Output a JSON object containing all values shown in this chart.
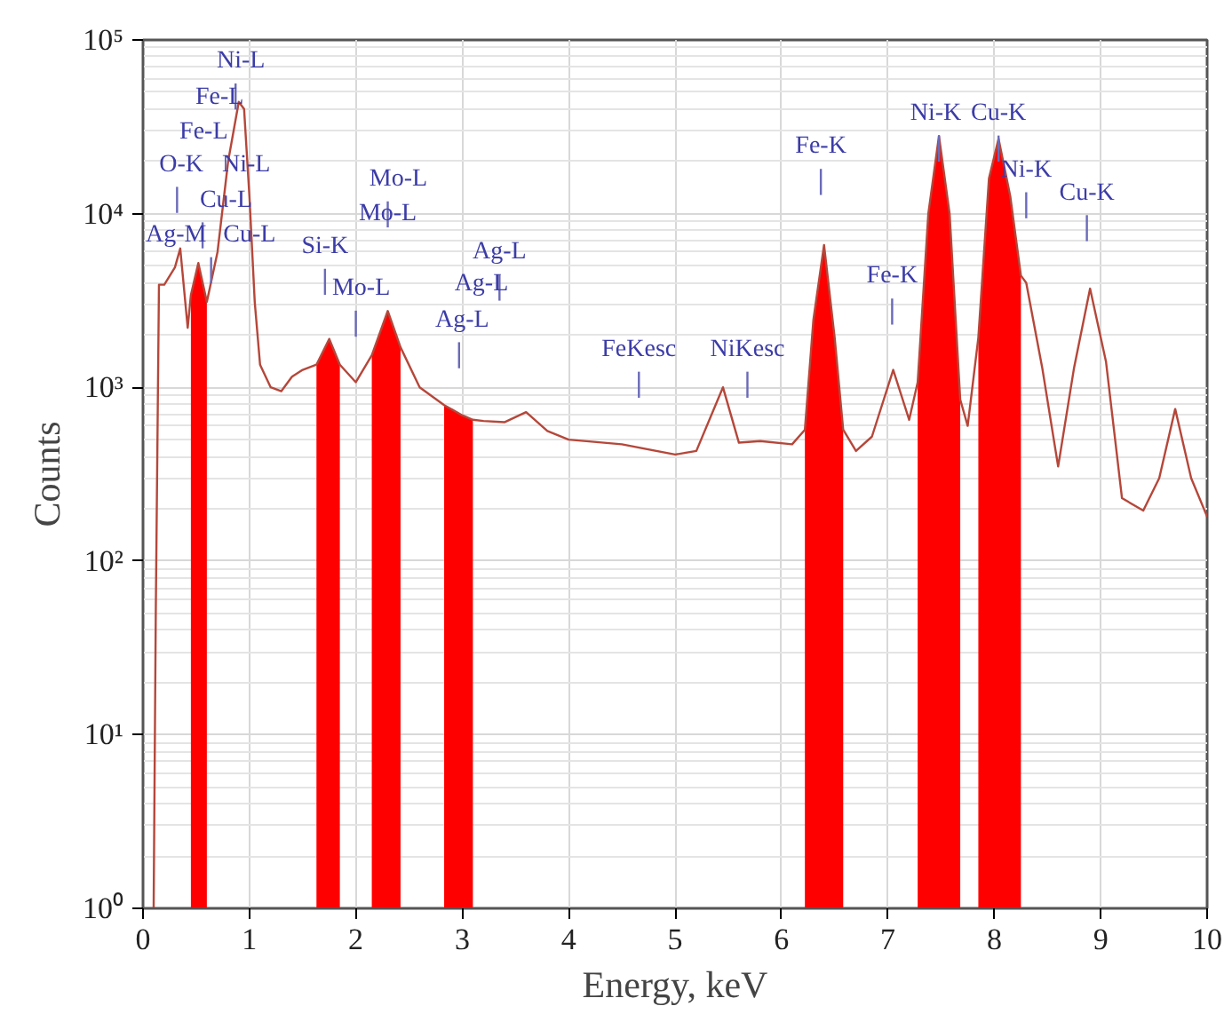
{
  "chart_data": {
    "type": "line",
    "xlabel": "Energy, keV",
    "ylabel": "Counts",
    "log": "y",
    "grid": true,
    "xlim": [
      0,
      10
    ],
    "xticks": [
      0,
      1,
      2,
      3,
      4,
      5,
      6,
      7,
      8,
      9,
      10
    ],
    "ylim": [
      1,
      100000
    ],
    "yticks": [
      {
        "value": 1,
        "label": "10⁰"
      },
      {
        "value": 10,
        "label": "10¹"
      },
      {
        "value": 100,
        "label": "10²"
      },
      {
        "value": 1000,
        "label": "10³"
      },
      {
        "value": 10000,
        "label": "10⁴"
      },
      {
        "value": 100000,
        "label": "10⁵"
      }
    ],
    "series": [
      {
        "type": "area",
        "color": "#ff0000",
        "x": [
          0.45,
          0.52,
          0.6
        ],
        "values": [
          3400,
          5200,
          3100
        ]
      },
      {
        "type": "area",
        "color": "#ff0000",
        "x": [
          1.63,
          1.75,
          1.85
        ],
        "values": [
          1350,
          1900,
          1350
        ]
      },
      {
        "type": "area",
        "color": "#ff0000",
        "x": [
          2.15,
          2.3,
          2.42
        ],
        "values": [
          1530,
          2750,
          1700
        ]
      },
      {
        "type": "area",
        "color": "#ff0000",
        "x": [
          2.83,
          3.0,
          3.1
        ],
        "values": [
          790,
          690,
          650
        ]
      },
      {
        "type": "area",
        "color": "#ff0000",
        "x": [
          6.22,
          6.3,
          6.4,
          6.5,
          6.58
        ],
        "values": [
          570,
          2450,
          6600,
          1930,
          570
        ]
      },
      {
        "type": "area",
        "color": "#ff0000",
        "x": [
          7.28,
          7.38,
          7.48,
          7.58,
          7.68
        ],
        "values": [
          1070,
          10000,
          28000,
          10000,
          850
        ]
      },
      {
        "type": "area",
        "color": "#ff0000",
        "x": [
          7.85,
          7.95,
          8.04,
          8.15,
          8.25
        ],
        "values": [
          1930,
          16000,
          27000,
          12600,
          4400
        ]
      },
      {
        "color": "#b5473a",
        "x": [
          0.1,
          0.12,
          0.15,
          0.2,
          0.3,
          0.35,
          0.42,
          0.45,
          0.52,
          0.6,
          0.7,
          0.8,
          0.9,
          0.95,
          1.0,
          1.05,
          1.1,
          1.2,
          1.3,
          1.4,
          1.5,
          1.63,
          1.75,
          1.85,
          2.0,
          2.15,
          2.3,
          2.42,
          2.6,
          2.83,
          3.0,
          3.1,
          3.2,
          3.4,
          3.6,
          3.8,
          4.0,
          4.5,
          5.0,
          5.2,
          5.45,
          5.6,
          5.8,
          6.1,
          6.22,
          6.3,
          6.4,
          6.5,
          6.58,
          6.7,
          6.85,
          7.05,
          7.2,
          7.28,
          7.38,
          7.48,
          7.58,
          7.68,
          7.75,
          7.85,
          7.95,
          8.04,
          8.15,
          8.25,
          8.3,
          8.45,
          8.6,
          8.75,
          8.9,
          9.05,
          9.2,
          9.4,
          9.55,
          9.7,
          9.85,
          10
        ],
        "values": [
          1,
          50,
          3900,
          3900,
          4900,
          6300,
          2200,
          3400,
          5200,
          3100,
          6000,
          20000,
          44000,
          40000,
          12600,
          3100,
          1350,
          1000,
          950,
          1150,
          1260,
          1350,
          1900,
          1350,
          1070,
          1530,
          2750,
          1700,
          1000,
          790,
          690,
          650,
          640,
          630,
          720,
          560,
          500,
          470,
          410,
          430,
          1000,
          480,
          490,
          470,
          570,
          2450,
          6600,
          1930,
          570,
          430,
          520,
          1260,
          650,
          1070,
          10000,
          28000,
          10000,
          850,
          600,
          1930,
          16000,
          27000,
          12600,
          4400,
          4000,
          1300,
          350,
          1300,
          3700,
          1400,
          230,
          195,
          300,
          750,
          300,
          180
        ]
      }
    ],
    "annotations": [
      "Ni-L",
      "Fe-L",
      "Fe-L",
      "O-K",
      "Ni-L",
      "Cu-L",
      "Ag-M",
      "Cu-L",
      "Si-K",
      "Mo-L",
      "Mo-L",
      "Mo-L",
      "Ag-L",
      "Ag-L",
      "Ag-L",
      "FeKesc",
      "NiKesc",
      "Fe-K",
      "Fe-K",
      "Ni-K",
      "Cu-K",
      "Ni-K",
      "Cu-K"
    ]
  }
}
